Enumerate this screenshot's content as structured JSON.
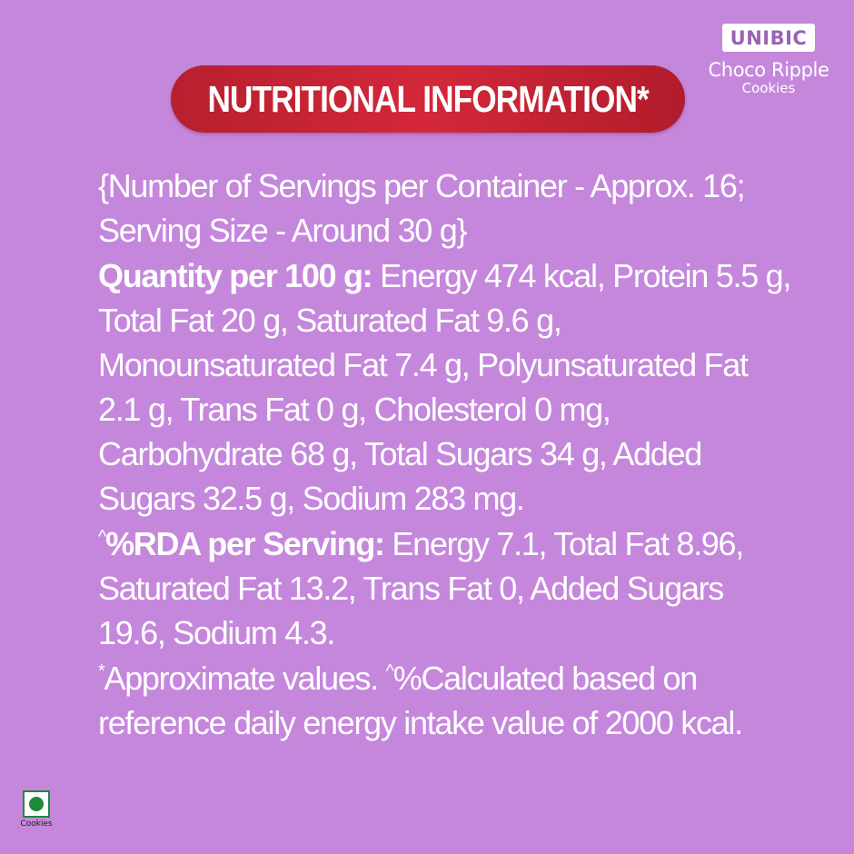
{
  "brand": {
    "name": "UNIBIC",
    "product": "Choco Ripple",
    "subtitle": "Cookies"
  },
  "title": "NUTRITIONAL INFORMATION*",
  "servings": {
    "line1": "{Number of Servings per Container - Approx. 16;",
    "line2": "Serving Size - Around 30 g}"
  },
  "quantity": {
    "label": "Quantity per 100 g:",
    "line1": " Energy 474 kcal, Protein 5.5 g,",
    "line2": "Total Fat 20 g, Saturated Fat 9.6 g,",
    "line3": "Monounsaturated Fat 7.4 g, Polyunsaturated Fat",
    "line4": "2.1 g, Trans Fat 0 g, Cholesterol 0 mg,",
    "line5": "Carbohydrate 68 g, Total Sugars 34 g, Added",
    "line6": "Sugars 32.5 g, Sodium 283 mg."
  },
  "rda": {
    "caret": "^",
    "label": "%RDA per Serving:",
    "line1": " Energy 7.1, Total Fat 8.96,",
    "line2": "Saturated Fat 13.2, Trans Fat 0, Added Sugars",
    "line3": "19.6, Sodium 4.3."
  },
  "footnote": {
    "star": "*",
    "part1": "Approximate values. ",
    "caret": "^",
    "part2": "%Calculated based on",
    "line2": "reference daily energy intake value of 2000 kcal."
  },
  "veg_mark": {
    "icon": "veg-symbol-icon",
    "label": "Cookies",
    "color": "#1e8a3a"
  },
  "colors": {
    "background": "#c587dc",
    "title_pill": "#c82232"
  }
}
